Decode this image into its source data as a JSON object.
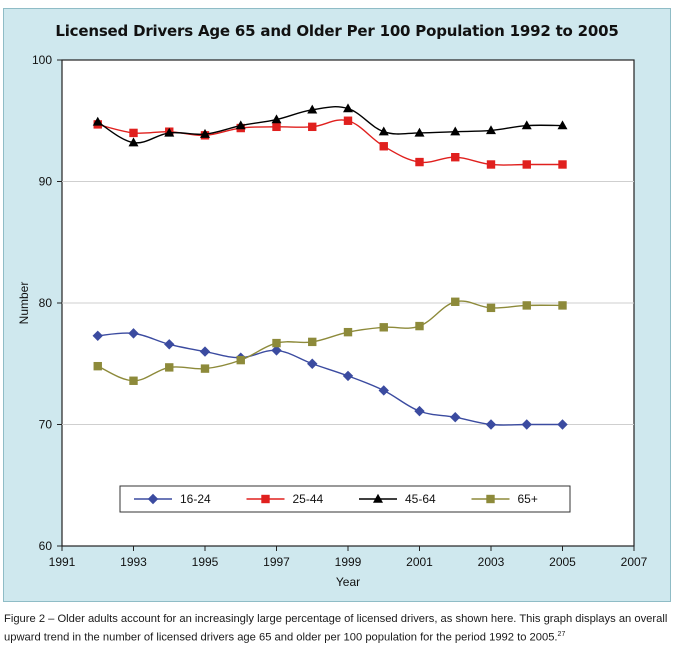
{
  "chart_data": {
    "type": "line",
    "title": "Licensed Drivers Age 65 and Older Per 100 Population 1992 to 2005",
    "xlabel": "Year",
    "ylabel": "Number",
    "xlim": [
      1991,
      2007
    ],
    "ylim": [
      60,
      100
    ],
    "xticks": [
      1991,
      1993,
      1995,
      1997,
      1999,
      2001,
      2003,
      2005,
      2007
    ],
    "yticks": [
      60,
      70,
      80,
      90,
      100
    ],
    "grid": "horizontal",
    "legend_position": "bottom",
    "x": [
      1992,
      1993,
      1994,
      1995,
      1996,
      1997,
      1998,
      1999,
      2000,
      2001,
      2002,
      2003,
      2004,
      2005
    ],
    "series": [
      {
        "name": "16-24",
        "color": "#3b4ba0",
        "marker": "diamond",
        "values": [
          77.3,
          77.5,
          76.6,
          76.0,
          75.5,
          76.1,
          75.0,
          74.0,
          72.8,
          71.1,
          70.6,
          70.0,
          70.0,
          70.0
        ]
      },
      {
        "name": "25-44",
        "color": "#e0201e",
        "marker": "square",
        "values": [
          94.7,
          94.0,
          94.1,
          93.8,
          94.4,
          94.5,
          94.5,
          95.0,
          92.9,
          91.6,
          92.0,
          91.4,
          91.4,
          91.4
        ]
      },
      {
        "name": "45-64",
        "color": "#000000",
        "marker": "triangle",
        "values": [
          94.9,
          93.2,
          94.0,
          93.9,
          94.6,
          95.1,
          95.9,
          96.0,
          94.1,
          94.0,
          94.1,
          94.2,
          94.6,
          94.6
        ]
      },
      {
        "name": "65+",
        "color": "#8d8a3a",
        "marker": "square",
        "values": [
          74.8,
          73.6,
          74.7,
          74.6,
          75.3,
          76.7,
          76.8,
          77.6,
          78.0,
          78.1,
          80.1,
          79.6,
          79.8,
          79.8
        ]
      }
    ]
  },
  "caption": {
    "text": "Figure 2 – Older adults account for an increasingly large percentage of licensed drivers, as shown here. This graph displays an overall upward trend in the number of licensed drivers age 65 and older per 100 population for the period 1992 to 2005.",
    "footnote": "27"
  }
}
